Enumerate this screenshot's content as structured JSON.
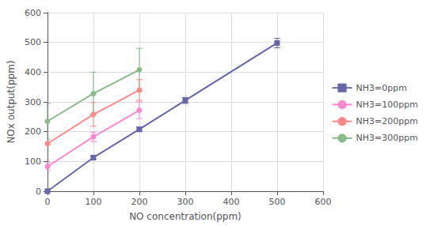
{
  "chart_data": {
    "type": "line",
    "xlabel": "NO concentration(ppm)",
    "ylabel": "NOx output(ppm)",
    "xlim": [
      0,
      600
    ],
    "ylim": [
      0,
      600
    ],
    "xticks": [
      0,
      100,
      200,
      300,
      400,
      500,
      600
    ],
    "yticks": [
      0,
      100,
      200,
      300,
      400,
      500,
      600
    ],
    "grid": true,
    "legend": "right",
    "series": [
      {
        "name": "NH3=0ppm",
        "color": "#6666aa",
        "marker": "square",
        "x": [
          0,
          100,
          200,
          300,
          500
        ],
        "values": [
          0,
          113,
          208,
          305,
          498
        ],
        "yerr": [
          2,
          6,
          8,
          10,
          16
        ]
      },
      {
        "name": "NH3=100ppm",
        "color": "#ff88cc",
        "marker": "circle",
        "x": [
          0,
          100,
          200
        ],
        "values": [
          83,
          183,
          272
        ],
        "yerr": [
          14,
          16,
          28
        ]
      },
      {
        "name": "NH3=200ppm",
        "color": "#ff8888",
        "marker": "circle",
        "x": [
          0,
          100,
          200
        ],
        "values": [
          160,
          258,
          340
        ],
        "yerr": [
          5,
          40,
          35
        ]
      },
      {
        "name": "NH3=300ppm",
        "color": "#88bb88",
        "marker": "circle",
        "x": [
          0,
          100,
          200
        ],
        "values": [
          235,
          328,
          408
        ],
        "yerr": [
          60,
          72,
          72
        ]
      }
    ]
  }
}
